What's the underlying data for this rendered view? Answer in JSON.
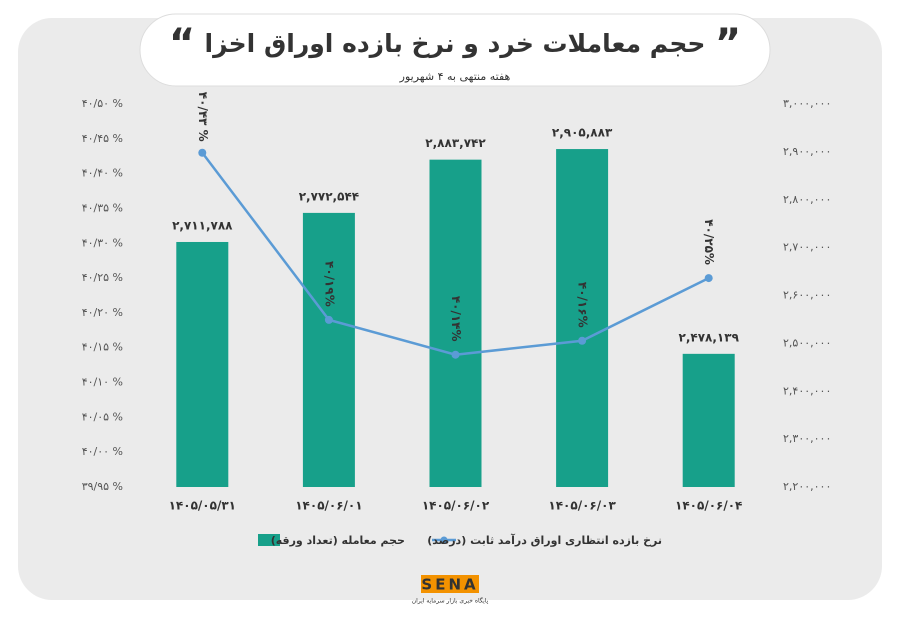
{
  "chart_data": {
    "type": "bar",
    "title": "حجم معاملات خرد و نرخ بازده اوراق اخزا",
    "subtitle": "هفته منتهی به ۴ شهریور",
    "categories": [
      "۱۴۰۵/۰۵/۳۱",
      "۱۴۰۵/۰۶/۰۱",
      "۱۴۰۵/۰۶/۰۲",
      "۱۴۰۵/۰۶/۰۳",
      "۱۴۰۵/۰۶/۰۴"
    ],
    "series": [
      {
        "name": "حجم معامله (تعداد ورقه)",
        "type": "bar",
        "axis": "y2",
        "color": "#17a08a",
        "values": [
          2711788,
          2772544,
          2883742,
          2905883,
          2478139
        ],
        "value_labels": [
          "۲,۷۱۱,۷۸۸",
          "۲,۷۷۲,۵۴۴",
          "۲,۸۸۳,۷۴۲",
          "۲,۹۰۵,۸۸۳",
          "۲,۴۷۸,۱۳۹"
        ]
      },
      {
        "name": "نرخ بازده انتظاری اوراق درآمد ثابت (درصد)",
        "type": "line",
        "color": "#5b9bd5",
        "values": [
          40.43,
          40.19,
          40.14,
          40.16,
          40.25
        ],
        "value_labels": [
          "۴۰/۴۳ %",
          "۴۰/۱۹%",
          "۴۰/۱۴%",
          "۴۰/۱۶%",
          "۴۰/۲۵%"
        ]
      }
    ],
    "ylim": [
      39.95,
      40.5
    ],
    "yticks": [
      {
        "value": 39.95,
        "label": "۳۹/۹۵ %"
      },
      {
        "value": 40.0,
        "label": "۴۰/۰۰ %"
      },
      {
        "value": 40.05,
        "label": "۴۰/۰۵ %"
      },
      {
        "value": 40.1,
        "label": "۴۰/۱۰ %"
      },
      {
        "value": 40.15,
        "label": "۴۰/۱۵ %"
      },
      {
        "value": 40.2,
        "label": "۴۰/۲۰ %"
      },
      {
        "value": 40.25,
        "label": "۴۰/۲۵ %"
      },
      {
        "value": 40.3,
        "label": "۴۰/۳۰ %"
      },
      {
        "value": 40.35,
        "label": "۴۰/۳۵ %"
      },
      {
        "value": 40.4,
        "label": "۴۰/۴۰ %"
      },
      {
        "value": 40.45,
        "label": "۴۰/۴۵ %"
      },
      {
        "value": 40.5,
        "label": "۴۰/۵۰ %"
      }
    ],
    "y2lim": [
      2200000,
      3000000
    ],
    "y2ticks": [
      {
        "value": 2200000,
        "label": "۲,۲۰۰,۰۰۰"
      },
      {
        "value": 2300000,
        "label": "۲,۳۰۰,۰۰۰"
      },
      {
        "value": 2400000,
        "label": "۲,۴۰۰,۰۰۰"
      },
      {
        "value": 2500000,
        "label": "۲,۵۰۰,۰۰۰"
      },
      {
        "value": 2600000,
        "label": "۲,۶۰۰,۰۰۰"
      },
      {
        "value": 2700000,
        "label": "۲,۷۰۰,۰۰۰"
      },
      {
        "value": 2800000,
        "label": "۲,۸۰۰,۰۰۰"
      },
      {
        "value": 2900000,
        "label": "۲,۹۰۰,۰۰۰"
      },
      {
        "value": 3000000,
        "label": "۳,۰۰۰,۰۰۰"
      }
    ],
    "legend": "bottom"
  },
  "logo": {
    "name": "SENA",
    "tagline": "پایگاه خبری بازار سرمایه ایران"
  }
}
